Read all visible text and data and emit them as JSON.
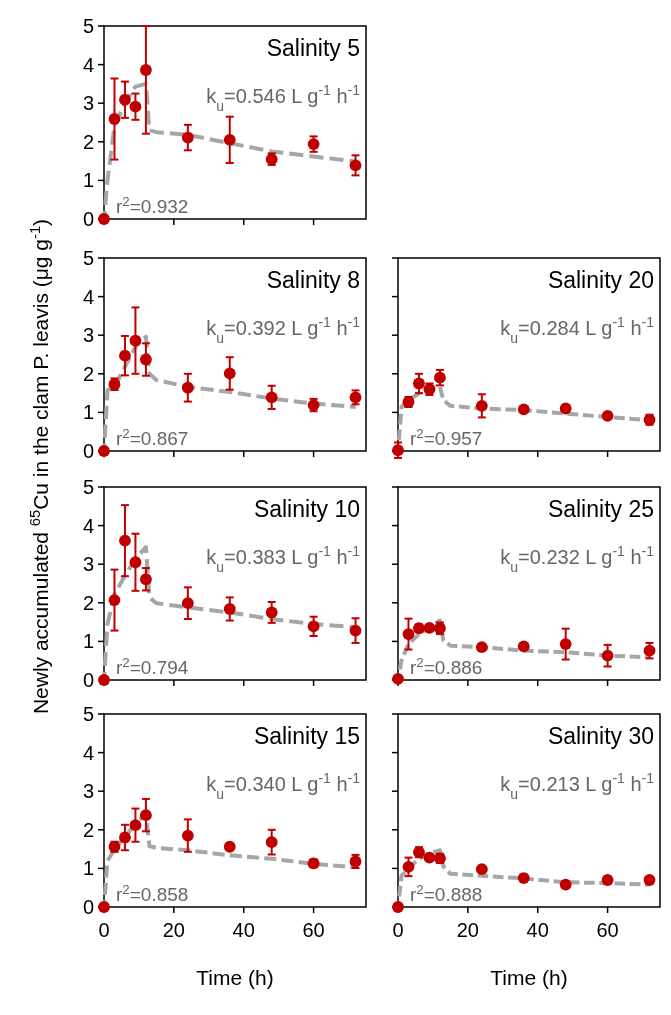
{
  "chart_data": [
    {
      "type": "scatter",
      "title": "Salinity 5",
      "ylabel": "Newly accumulated $^{65}$Cu in the clam P. leavis (μg g$^{-1}$)",
      "annotations": [
        "k$_{u}$=0.546 L g$^{-1}$ h$^{-1}$",
        "r$^{2}$=0.932"
      ],
      "xlim": [
        0,
        75
      ],
      "xticks": [
        0,
        20,
        40,
        60
      ],
      "ylim": [
        0,
        5
      ],
      "yticks": [
        0,
        1,
        2,
        3,
        4,
        5
      ],
      "tick_labels": "y",
      "series": [
        {
          "type": "scatter",
          "marker": "circle",
          "color": "#c00000",
          "x": [
            0,
            3,
            6,
            9,
            12,
            24,
            36,
            48,
            60,
            72
          ],
          "values": [
            0,
            2.59,
            3.09,
            2.91,
            3.86,
            2.11,
            2.05,
            1.55,
            1.94,
            1.39
          ],
          "errors": [
            null,
            1.05,
            0.47,
            0.34,
            [
              2.21,
              5
            ],
            0.33,
            0.6,
            0.15,
            0.2,
            0.26
          ]
        },
        {
          "type": "line",
          "marker": "none",
          "color": "#a6a6a6",
          "line_style": "dashed",
          "x": [
            0,
            1,
            3,
            6,
            9,
            12,
            13,
            15,
            24,
            48,
            60,
            72
          ],
          "values": [
            0,
            1.0,
            2.4,
            3.0,
            3.43,
            3.5,
            2.3,
            2.25,
            2.18,
            1.75,
            1.62,
            1.49
          ]
        }
      ]
    },
    {
      "type": "scatter",
      "title": "Salinity 8",
      "annotations": [
        "k$_{u}$=0.392 L g$^{-1}$ h$^{-1}$",
        "r$^{2}$=0.867"
      ],
      "xlim": [
        0,
        75
      ],
      "xticks": [
        0,
        20,
        40,
        60
      ],
      "ylim": [
        0,
        5
      ],
      "yticks": [
        0,
        1,
        2,
        3,
        4,
        5
      ],
      "tick_labels": "y",
      "series": [
        {
          "type": "scatter",
          "marker": "circle",
          "color": "#c00000",
          "x": [
            0,
            3,
            6,
            9,
            12,
            24,
            36,
            48,
            60,
            72
          ],
          "values": [
            0,
            1.73,
            2.47,
            2.86,
            2.37,
            1.64,
            2.01,
            1.39,
            1.19,
            1.39
          ],
          "errors": [
            null,
            0.15,
            0.51,
            0.86,
            0.42,
            0.36,
            0.42,
            0.3,
            0.16,
            0.18
          ]
        },
        {
          "type": "line",
          "marker": "none",
          "color": "#a6a6a6",
          "line_style": "dashed",
          "x": [
            0,
            1,
            3,
            6,
            9,
            12,
            13,
            15,
            24,
            36,
            48,
            60,
            72
          ],
          "values": [
            0,
            1.58,
            1.66,
            2.18,
            2.7,
            2.96,
            2.0,
            1.84,
            1.66,
            1.53,
            1.36,
            1.23,
            1.14
          ]
        }
      ]
    },
    {
      "type": "scatter",
      "title": "Salinity 20",
      "annotations": [
        "k$_{u}$=0.284 L g$^{-1}$ h$^{-1}$",
        "r$^{2}$=0.957"
      ],
      "xlim": [
        0,
        75
      ],
      "xticks": [
        0,
        20,
        40,
        60
      ],
      "ylim": [
        0,
        5
      ],
      "yticks": [
        0,
        1,
        2,
        3,
        4,
        5
      ],
      "tick_labels": false,
      "series": [
        {
          "type": "scatter",
          "marker": "circle",
          "color": "#c00000",
          "x": [
            0,
            3,
            6,
            9,
            12,
            24,
            36,
            48,
            60,
            72
          ],
          "values": [
            0.02,
            1.27,
            1.75,
            1.6,
            1.9,
            1.17,
            1.08,
            1.1,
            0.91,
            0.81
          ],
          "errors": [
            0.2,
            0.13,
            0.25,
            0.15,
            0.2,
            0.3,
            null,
            null,
            null,
            0.13
          ]
        },
        {
          "type": "line",
          "marker": "none",
          "color": "#a6a6a6",
          "line_style": "dashed",
          "x": [
            0,
            1,
            3,
            6,
            9,
            12,
            13,
            15,
            24,
            36,
            48,
            60,
            72
          ],
          "values": [
            0,
            1.14,
            1.32,
            1.49,
            1.62,
            1.66,
            1.32,
            1.17,
            1.1,
            1.06,
            0.97,
            0.88,
            0.8
          ]
        }
      ]
    },
    {
      "type": "scatter",
      "title": "Salinity 10",
      "annotations": [
        "k$_{u}$=0.383 L g$^{-1}$ h$^{-1}$",
        "r$^{2}$=0.794"
      ],
      "xlim": [
        0,
        75
      ],
      "xticks": [
        0,
        20,
        40,
        60
      ],
      "ylim": [
        0,
        5
      ],
      "yticks": [
        0,
        1,
        2,
        3,
        4,
        5
      ],
      "tick_labels": "y",
      "series": [
        {
          "type": "scatter",
          "marker": "circle",
          "color": "#c00000",
          "x": [
            0,
            3,
            6,
            9,
            12,
            24,
            36,
            48,
            60,
            72
          ],
          "values": [
            0,
            2.07,
            3.61,
            3.05,
            2.61,
            1.99,
            1.84,
            1.75,
            1.39,
            1.28
          ],
          "errors": [
            null,
            0.79,
            0.92,
            0.74,
            0.29,
            0.41,
            0.3,
            0.27,
            0.25,
            0.32
          ]
        },
        {
          "type": "line",
          "marker": "none",
          "color": "#a6a6a6",
          "line_style": "dashed",
          "x": [
            0,
            1,
            3,
            6,
            9,
            12,
            13,
            15,
            24,
            36,
            48,
            60,
            72
          ],
          "values": [
            0,
            1.45,
            2.23,
            2.7,
            3.14,
            3.44,
            2.14,
            1.99,
            1.88,
            1.75,
            1.58,
            1.45,
            1.37
          ]
        }
      ]
    },
    {
      "type": "scatter",
      "title": "Salinity 25",
      "annotations": [
        "k$_{u}$=0.232 L g$^{-1}$ h$^{-1}$",
        "r$^{2}$=0.886"
      ],
      "xlim": [
        0,
        75
      ],
      "xticks": [
        0,
        20,
        40,
        60
      ],
      "ylim": [
        0,
        5
      ],
      "yticks": [
        0,
        1,
        2,
        3,
        4,
        5
      ],
      "tick_labels": false,
      "series": [
        {
          "type": "scatter",
          "marker": "circle",
          "color": "#c00000",
          "x": [
            0,
            3,
            6,
            9,
            12,
            24,
            36,
            48,
            60,
            72
          ],
          "values": [
            0.03,
            1.19,
            1.34,
            1.35,
            1.34,
            0.85,
            0.87,
            0.93,
            0.63,
            0.76
          ],
          "errors": [
            null,
            0.4,
            0.1,
            null,
            0.15,
            null,
            null,
            0.4,
            0.28,
            0.2
          ]
        },
        {
          "type": "line",
          "marker": "none",
          "color": "#a6a6a6",
          "line_style": "dashed",
          "x": [
            0,
            1,
            3,
            6,
            9,
            12,
            13,
            15,
            24,
            36,
            48,
            60,
            72
          ],
          "values": [
            0,
            0.5,
            0.93,
            1.19,
            1.37,
            1.54,
            1.02,
            0.89,
            0.85,
            0.76,
            0.72,
            0.63,
            0.59
          ]
        }
      ]
    },
    {
      "type": "scatter",
      "title": "Salinity 15",
      "xlabel": "Time (h)",
      "annotations": [
        "k$_{u}$=0.340 L g$^{-1}$ h$^{-1}$",
        "r$^{2}$=0.858"
      ],
      "xlim": [
        0,
        75
      ],
      "xticks": [
        0,
        20,
        40,
        60
      ],
      "ylim": [
        0,
        5
      ],
      "yticks": [
        0,
        1,
        2,
        3,
        4,
        5
      ],
      "series": [
        {
          "type": "scatter",
          "marker": "circle",
          "color": "#c00000",
          "x": [
            0,
            3,
            6,
            9,
            12,
            24,
            36,
            48,
            60,
            72
          ],
          "values": [
            0,
            1.56,
            1.8,
            2.12,
            2.38,
            1.85,
            1.56,
            1.68,
            1.13,
            1.18
          ],
          "errors": [
            null,
            0.13,
            0.33,
            0.43,
            0.42,
            0.42,
            null,
            0.32,
            0.1,
            0.17
          ]
        },
        {
          "type": "line",
          "marker": "none",
          "color": "#a6a6a6",
          "line_style": "dashed",
          "x": [
            0,
            1,
            3,
            6,
            9,
            12,
            13,
            15,
            24,
            36,
            48,
            60,
            72
          ],
          "values": [
            0,
            1.2,
            1.49,
            1.82,
            2.16,
            2.4,
            1.58,
            1.53,
            1.47,
            1.34,
            1.25,
            1.12,
            1.03
          ]
        }
      ]
    },
    {
      "type": "scatter",
      "title": "Salinity 30",
      "xlabel": "Time (h)",
      "annotations": [
        "k$_{u}$=0.213 L g$^{-1}$ h$^{-1}$",
        "r$^{2}$=0.888"
      ],
      "xlim": [
        0,
        75
      ],
      "xticks": [
        0,
        20,
        40,
        60
      ],
      "ylim": [
        0,
        5
      ],
      "yticks": [
        0,
        1,
        2,
        3,
        4,
        5
      ],
      "tick_labels": "x",
      "series": [
        {
          "type": "scatter",
          "marker": "circle",
          "color": "#c00000",
          "x": [
            0,
            3,
            6,
            9,
            12,
            24,
            36,
            48,
            60,
            72
          ],
          "values": [
            0,
            1.04,
            1.42,
            1.28,
            1.26,
            0.98,
            0.75,
            0.58,
            0.7,
            0.7
          ],
          "errors": [
            null,
            0.24,
            0.13,
            null,
            0.12,
            null,
            null,
            null,
            null,
            null
          ]
        },
        {
          "type": "line",
          "marker": "none",
          "color": "#a6a6a6",
          "line_style": "dashed",
          "x": [
            0,
            1,
            3,
            6,
            9,
            12,
            13,
            15,
            24,
            36,
            48,
            60,
            72
          ],
          "values": [
            0,
            0.81,
            1.0,
            1.25,
            1.39,
            1.47,
            1.05,
            0.86,
            0.81,
            0.74,
            0.64,
            0.62,
            0.58
          ]
        }
      ]
    }
  ]
}
